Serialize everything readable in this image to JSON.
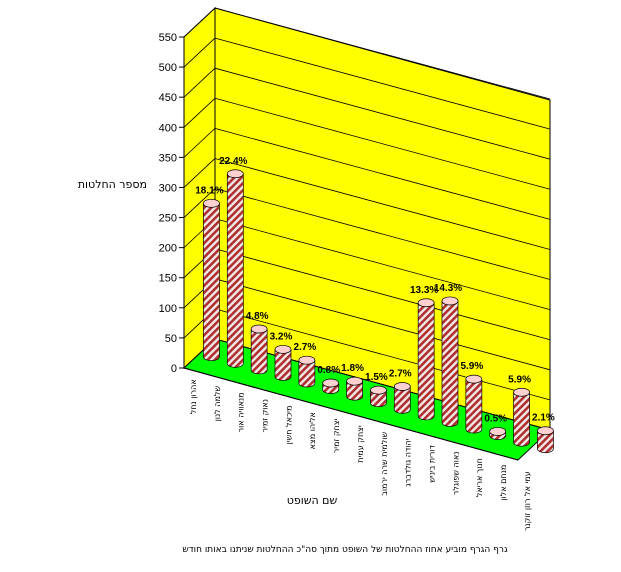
{
  "chart_data": {
    "type": "bar",
    "style": "3d-cylinder",
    "ylabel": "מספר החלטות",
    "xlabel": "שם השופט",
    "caption": "גרף הגרף מוביע אחוז ההחלטות של השופט מתוך סה\"כ ההחלטות שניתנו באותו חודש",
    "ylim": [
      0,
      550
    ],
    "yticks": [
      "0",
      "50",
      "100",
      "150",
      "200",
      "250",
      "300",
      "350",
      "400",
      "450",
      "500",
      "550"
    ],
    "grid": true,
    "legend": "none",
    "categories": [
      "אהרון נחל",
      "שלמה לנון",
      "מנאוויה אור",
      "נאוק זמיר",
      "מיכאל חשין",
      "אליהו מצא",
      "יצחק זמיר",
      "יצחק עמית",
      "שולמית שרה ירמוב",
      "יהודה גולדברג",
      "דורית ביניש",
      "נאוה שפוגלר",
      "חנוך אריאל",
      "מנחם אלון",
      "עמי אל רוזן זוקנר"
    ],
    "values": [
      255,
      315,
      68,
      45,
      38,
      11,
      25,
      21,
      38,
      188,
      202,
      83,
      7,
      83,
      30
    ],
    "percent_labels": [
      "18.1%",
      "22.4%",
      "4.8%",
      "3.2%",
      "2.7%",
      "0.8%",
      "1.8%",
      "1.5%",
      "2.7%",
      "13.3%",
      "14.3%",
      "5.9%",
      "0.5%",
      "5.9%",
      "2.1%"
    ],
    "colors": {
      "wall": "#ffff00",
      "floor": "#00ff00",
      "bar_stripe_a": "#b03030",
      "bar_stripe_b": "#f2eaea",
      "bar_top": "#ffd0d0",
      "grid": "#000000"
    }
  }
}
